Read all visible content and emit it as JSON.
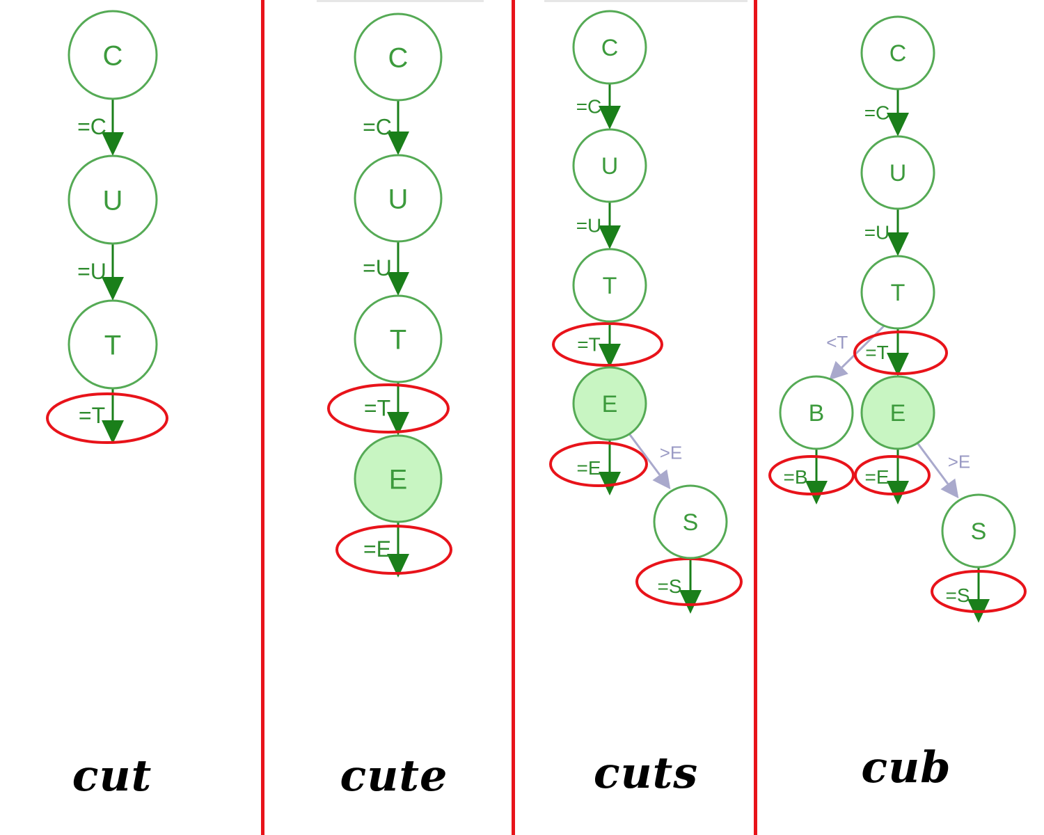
{
  "colors": {
    "node_stroke": "#55aa55",
    "node_text": "#3c9a3c",
    "equal_edge": "#1a7f1a",
    "equal_label": "#2e8b2e",
    "branch_edge": "#a9a9cc",
    "branch_label": "#9a9ac4",
    "highlight_fill": "#c8f5c2",
    "ellipse": "#e8131a",
    "divider": "#e8131a"
  },
  "panels": [
    {
      "word": "cut",
      "nodes": [
        {
          "id": "c",
          "label": "C",
          "highlighted": false
        },
        {
          "id": "u",
          "label": "U",
          "highlighted": false
        },
        {
          "id": "t",
          "label": "T",
          "highlighted": false
        }
      ],
      "edges": [
        {
          "from": "c",
          "to": "u",
          "label": "=C",
          "kind": "equal",
          "circled": false
        },
        {
          "from": "u",
          "to": "t",
          "label": "=U",
          "kind": "equal",
          "circled": false
        },
        {
          "from": "t",
          "to": null,
          "label": "=T",
          "kind": "equal",
          "circled": true
        }
      ]
    },
    {
      "word": "cute",
      "nodes": [
        {
          "id": "c",
          "label": "C",
          "highlighted": false
        },
        {
          "id": "u",
          "label": "U",
          "highlighted": false
        },
        {
          "id": "t",
          "label": "T",
          "highlighted": false
        },
        {
          "id": "e",
          "label": "E",
          "highlighted": true
        }
      ],
      "edges": [
        {
          "from": "c",
          "to": "u",
          "label": "=C",
          "kind": "equal",
          "circled": false
        },
        {
          "from": "u",
          "to": "t",
          "label": "=U",
          "kind": "equal",
          "circled": false
        },
        {
          "from": "t",
          "to": "e",
          "label": "=T",
          "kind": "equal",
          "circled": true
        },
        {
          "from": "e",
          "to": null,
          "label": "=E",
          "kind": "equal",
          "circled": true
        }
      ]
    },
    {
      "word": "cuts",
      "nodes": [
        {
          "id": "c",
          "label": "C",
          "highlighted": false
        },
        {
          "id": "u",
          "label": "U",
          "highlighted": false
        },
        {
          "id": "t",
          "label": "T",
          "highlighted": false
        },
        {
          "id": "e",
          "label": "E",
          "highlighted": true
        },
        {
          "id": "s",
          "label": "S",
          "highlighted": false
        }
      ],
      "edges": [
        {
          "from": "c",
          "to": "u",
          "label": "=C",
          "kind": "equal",
          "circled": false
        },
        {
          "from": "u",
          "to": "t",
          "label": "=U",
          "kind": "equal",
          "circled": false
        },
        {
          "from": "t",
          "to": "e",
          "label": "=T",
          "kind": "equal",
          "circled": true
        },
        {
          "from": "e",
          "to": null,
          "label": "=E",
          "kind": "equal",
          "circled": true
        },
        {
          "from": "e",
          "to": "s",
          "label": ">E",
          "kind": "branch",
          "circled": false
        },
        {
          "from": "s",
          "to": null,
          "label": "=S",
          "kind": "equal",
          "circled": true
        }
      ]
    },
    {
      "word": "cub",
      "nodes": [
        {
          "id": "c",
          "label": "C",
          "highlighted": false
        },
        {
          "id": "u",
          "label": "U",
          "highlighted": false
        },
        {
          "id": "t",
          "label": "T",
          "highlighted": false
        },
        {
          "id": "b",
          "label": "B",
          "highlighted": false
        },
        {
          "id": "e",
          "label": "E",
          "highlighted": true
        },
        {
          "id": "s",
          "label": "S",
          "highlighted": false
        }
      ],
      "edges": [
        {
          "from": "c",
          "to": "u",
          "label": "=C",
          "kind": "equal",
          "circled": false
        },
        {
          "from": "u",
          "to": "t",
          "label": "=U",
          "kind": "equal",
          "circled": false
        },
        {
          "from": "t",
          "to": "b",
          "label": "<T",
          "kind": "branch",
          "circled": false
        },
        {
          "from": "t",
          "to": "e",
          "label": "=T",
          "kind": "equal",
          "circled": true
        },
        {
          "from": "b",
          "to": null,
          "label": "=B",
          "kind": "equal",
          "circled": true
        },
        {
          "from": "e",
          "to": null,
          "label": "=E",
          "kind": "equal",
          "circled": true
        },
        {
          "from": "e",
          "to": "s",
          "label": ">E",
          "kind": "branch",
          "circled": false
        },
        {
          "from": "s",
          "to": null,
          "label": "=S",
          "kind": "equal",
          "circled": true
        }
      ]
    }
  ]
}
